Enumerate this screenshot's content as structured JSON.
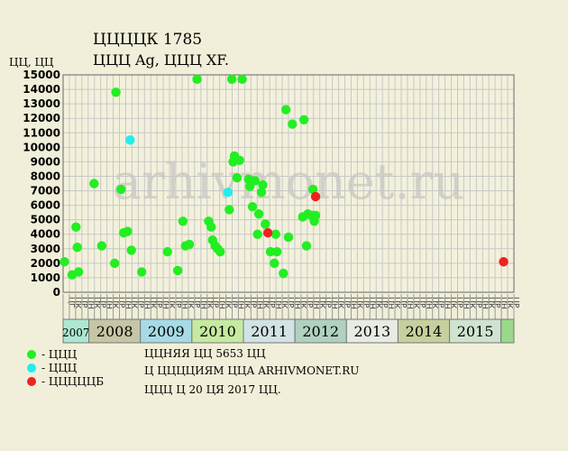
{
  "title": "ЦЦЦЦК 1785",
  "subtitle": "ЦЦЦ Ag, ЦЦЦ XF.",
  "unit_label": "ЦЦ, ЦЦ",
  "watermark": "arhivmonet.ru",
  "legend": [
    {
      "label": "- ЦЦЦ",
      "color": "#22ee22"
    },
    {
      "label": "- ЦЦЦ",
      "color": "#22eeee"
    },
    {
      "label": "- ЦЦЦЦЦБ",
      "color": "#ee2222"
    }
  ],
  "notes": [
    "ЦЦНЯЯ ЦЦ 5653 ЦЦ",
    "Ц ЦЦЦЦИЯМ ЦЦА ARHIVMONET.RU",
    "ЦЦЦ Ц 20 ЦЯ 2017 ЦЦ."
  ],
  "chart_data": {
    "type": "scatter",
    "ylim": [
      0,
      15000
    ],
    "yticks": [
      0,
      1000,
      2000,
      3000,
      4000,
      5000,
      6000,
      7000,
      8000,
      9000,
      10000,
      11000,
      12000,
      13000,
      14000,
      15000
    ],
    "months": [
      "ЦГ",
      "ЦК",
      "ЦР",
      "ЦН",
      "ЦК",
      "ЦР",
      "ЦН",
      "ЦК",
      "ЦР",
      "ЦН",
      "ЦК",
      "ЦР",
      "ЦН",
      "ЦК",
      "ЦР",
      "ЦН",
      "ЦК",
      "ЦР",
      "ЦН",
      "ЦК",
      "ЦР",
      "ЦН",
      "ЦК",
      "ЦР",
      "ЦН",
      "ЦК",
      "ЦР",
      "ЦН",
      "ЦК",
      "ЦР",
      "ЦН",
      "ЦК",
      "ЦР",
      "ЦН",
      "ЦК",
      "ЦР",
      "ЦН",
      "ЦК",
      "ЦР",
      "ЦН",
      "ЦК",
      "ЦР",
      "ЦН",
      "ЦК",
      "ЦР",
      "ЦН",
      "ЦК",
      "ЦР",
      "ЦН",
      "ЦК",
      "ЦР",
      "ЦН",
      "ЦК",
      "ЦР",
      "ЦН",
      "ЦК",
      "ЦР",
      "ЦН",
      "ЦК",
      "ЦР",
      "ЦН",
      "ЦК",
      "ЦР",
      "ЦН",
      "ЦК",
      "ЦР",
      "ЦН",
      "ЦК",
      "ЦР",
      "ЦН",
      "ЦК",
      "ЦР"
    ],
    "years": [
      {
        "label": "2007",
        "start": 0,
        "end": 2,
        "color": "#aee8d2"
      },
      {
        "label": "2008",
        "start": 2,
        "end": 6,
        "color": "#c6c6a6"
      },
      {
        "label": "2009",
        "start": 6,
        "end": 10,
        "color": "#a6dbe6"
      },
      {
        "label": "2010",
        "start": 10,
        "end": 14,
        "color": "#c6eaa0"
      },
      {
        "label": "2011",
        "start": 14,
        "end": 18,
        "color": "#d2e3e3"
      },
      {
        "label": "2012",
        "start": 18,
        "end": 22,
        "color": "#b0d0c0"
      },
      {
        "label": "2013",
        "start": 22,
        "end": 26,
        "color": "#e6ebe3"
      },
      {
        "label": "2014",
        "start": 26,
        "end": 30,
        "color": "#c6cf9e"
      },
      {
        "label": "2015",
        "start": 30,
        "end": 34,
        "color": "#cfe3cf"
      },
      {
        "label": "",
        "start": 34,
        "end": 35,
        "color": "#98d98a"
      }
    ],
    "slots": 35,
    "series": [
      {
        "color": "#22ee22",
        "points": [
          [
            0.1,
            2100
          ],
          [
            0.7,
            1200
          ],
          [
            1.0,
            4500
          ],
          [
            1.1,
            3100
          ],
          [
            1.2,
            1400
          ],
          [
            2.4,
            7500
          ],
          [
            3.0,
            3200
          ],
          [
            4.0,
            2000
          ],
          [
            4.1,
            13800
          ],
          [
            4.5,
            7100
          ],
          [
            4.7,
            4100
          ],
          [
            5.0,
            4200
          ],
          [
            5.3,
            2900
          ],
          [
            6.1,
            1400
          ],
          [
            8.1,
            2800
          ],
          [
            8.9,
            1500
          ],
          [
            9.3,
            4900
          ],
          [
            9.5,
            3200
          ],
          [
            9.8,
            3300
          ],
          [
            10.4,
            14700
          ],
          [
            11.3,
            4900
          ],
          [
            11.5,
            4500
          ],
          [
            11.6,
            3600
          ],
          [
            11.8,
            3200
          ],
          [
            12.0,
            3000
          ],
          [
            12.2,
            2800
          ],
          [
            12.9,
            5700
          ],
          [
            13.1,
            14700
          ],
          [
            13.2,
            9000
          ],
          [
            13.3,
            9400
          ],
          [
            13.5,
            7900
          ],
          [
            13.7,
            9100
          ],
          [
            13.9,
            14700
          ],
          [
            14.4,
            7800
          ],
          [
            14.5,
            7300
          ],
          [
            14.7,
            5900
          ],
          [
            14.9,
            7700
          ],
          [
            15.1,
            4000
          ],
          [
            15.2,
            5400
          ],
          [
            15.4,
            6900
          ],
          [
            15.5,
            7400
          ],
          [
            15.7,
            4700
          ],
          [
            16.1,
            2800
          ],
          [
            16.4,
            2000
          ],
          [
            16.5,
            4000
          ],
          [
            16.6,
            2800
          ],
          [
            17.1,
            1300
          ],
          [
            17.3,
            12600
          ],
          [
            17.5,
            3800
          ],
          [
            17.8,
            11600
          ],
          [
            18.6,
            5200
          ],
          [
            18.7,
            11900
          ],
          [
            18.9,
            3200
          ],
          [
            19.0,
            5400
          ],
          [
            19.3,
            5300
          ],
          [
            19.4,
            7100
          ],
          [
            19.5,
            4900
          ],
          [
            19.6,
            5300
          ]
        ]
      },
      {
        "color": "#22eeee",
        "points": [
          [
            5.2,
            10500
          ],
          [
            12.8,
            6900
          ]
        ]
      },
      {
        "color": "#ee2222",
        "points": [
          [
            15.9,
            4100
          ],
          [
            19.6,
            6600
          ],
          [
            34.2,
            2100
          ]
        ]
      }
    ]
  }
}
